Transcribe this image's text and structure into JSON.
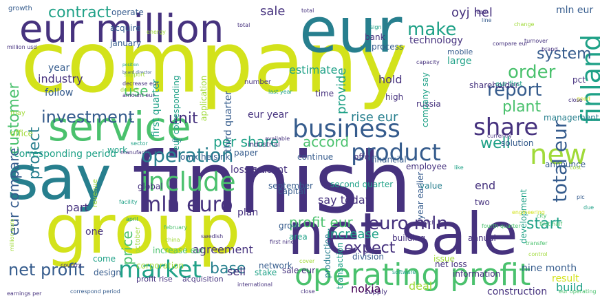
{
  "palette": {
    "yellow": "#d3e21b",
    "lime": "#a0da39",
    "green": "#4ac16d",
    "teal": "#1fa187",
    "cyan": "#277f8e",
    "blue": "#365c8d",
    "indigo": "#46327e",
    "purple": "#440154"
  },
  "words": [
    {
      "text": "company"
    },
    {
      "text": "finnish"
    },
    {
      "text": "eur"
    },
    {
      "text": "net sale"
    },
    {
      "text": "group"
    },
    {
      "text": "say"
    },
    {
      "text": "eur million"
    },
    {
      "text": "service"
    },
    {
      "text": "operating profit"
    },
    {
      "text": "business"
    },
    {
      "text": "include"
    },
    {
      "text": "finland"
    },
    {
      "text": "market"
    },
    {
      "text": "product"
    },
    {
      "text": "share"
    },
    {
      "text": "new"
    },
    {
      "text": "mln euro"
    },
    {
      "text": "total eur"
    },
    {
      "text": "operation"
    },
    {
      "text": "investment"
    },
    {
      "text": "net profit"
    },
    {
      "text": "euro mln"
    },
    {
      "text": "make"
    },
    {
      "text": "report"
    },
    {
      "text": "order"
    },
    {
      "text": "system"
    },
    {
      "text": "plant"
    },
    {
      "text": "well"
    },
    {
      "text": "customer"
    },
    {
      "text": "project"
    },
    {
      "text": "eur compare"
    },
    {
      "text": "contract"
    },
    {
      "text": "per share"
    },
    {
      "text": "accord"
    },
    {
      "text": "unit"
    },
    {
      "text": "use"
    },
    {
      "text": "base"
    },
    {
      "text": "expect"
    },
    {
      "text": "profit eur"
    },
    {
      "text": "price"
    },
    {
      "text": "start"
    },
    {
      "text": "increase"
    },
    {
      "text": "corresponding period"
    },
    {
      "text": "sale"
    },
    {
      "text": "oyj hel"
    },
    {
      "text": "provide"
    },
    {
      "text": "estimate"
    },
    {
      "text": "technology"
    },
    {
      "text": "industry"
    },
    {
      "text": "part"
    },
    {
      "text": "build"
    },
    {
      "text": "agreement"
    },
    {
      "text": "nokia"
    },
    {
      "text": "sell"
    },
    {
      "text": "end"
    },
    {
      "text": "mln eur"
    },
    {
      "text": "rise eur"
    },
    {
      "text": "say today"
    },
    {
      "text": "hold"
    },
    {
      "text": "one"
    },
    {
      "text": "corporation"
    },
    {
      "text": "sale eur"
    },
    {
      "text": "deal"
    },
    {
      "text": "construction"
    },
    {
      "text": "result"
    },
    {
      "text": "nine month"
    },
    {
      "text": "net loss"
    },
    {
      "text": "information"
    },
    {
      "text": "division"
    },
    {
      "text": "transaction"
    },
    {
      "text": "production"
    },
    {
      "text": "year earlier"
    },
    {
      "text": "development"
    },
    {
      "text": "loss eur"
    },
    {
      "text": "plan"
    },
    {
      "text": "grow"
    },
    {
      "text": "third quarter"
    },
    {
      "text": "first quarter"
    },
    {
      "text": "year"
    },
    {
      "text": "follow"
    },
    {
      "text": "operate"
    },
    {
      "text": "acquire"
    },
    {
      "text": "january"
    },
    {
      "text": "growth"
    },
    {
      "text": "application"
    },
    {
      "text": "eur corresponding"
    },
    {
      "text": "number"
    },
    {
      "text": "time"
    },
    {
      "text": "high"
    },
    {
      "text": "russia"
    },
    {
      "text": "company say"
    },
    {
      "text": "shareholder"
    },
    {
      "text": "large"
    },
    {
      "text": "mobile"
    },
    {
      "text": "eur first"
    },
    {
      "text": "pct"
    },
    {
      "text": "management"
    },
    {
      "text": "process"
    },
    {
      "text": "continue"
    },
    {
      "text": "offer"
    },
    {
      "text": "financial"
    },
    {
      "text": "employee"
    },
    {
      "text": "solution"
    },
    {
      "text": "announce"
    },
    {
      "text": "value"
    },
    {
      "text": "two"
    },
    {
      "text": "percent"
    },
    {
      "text": "eur year"
    },
    {
      "text": "paper"
    },
    {
      "text": "omx helsinki"
    },
    {
      "text": "second quarter"
    },
    {
      "text": "september"
    },
    {
      "text": "capital"
    },
    {
      "text": "area"
    },
    {
      "text": "building"
    },
    {
      "text": "annual"
    },
    {
      "text": "issue"
    },
    {
      "text": "network"
    },
    {
      "text": "stake"
    },
    {
      "text": "supply"
    },
    {
      "text": "design"
    },
    {
      "text": "come"
    },
    {
      "text": "office"
    },
    {
      "text": "work"
    },
    {
      "text": "global"
    },
    {
      "text": "profit rise"
    },
    {
      "text": "acquisition"
    },
    {
      "text": "increase eur"
    },
    {
      "text": "october"
    },
    {
      "text": "may"
    },
    {
      "text": "board director"
    },
    {
      "text": "position"
    },
    {
      "text": "bank"
    },
    {
      "text": "revenue"
    },
    {
      "text": "industrial"
    },
    {
      "text": "march"
    },
    {
      "text": "first half"
    },
    {
      "text": "fourth quarter"
    },
    {
      "text": "engineering"
    },
    {
      "text": "manufacture"
    },
    {
      "text": "sector"
    },
    {
      "text": "day"
    },
    {
      "text": "china"
    },
    {
      "text": "february"
    },
    {
      "text": "april"
    },
    {
      "text": "facility"
    },
    {
      "text": "swedish"
    },
    {
      "text": "first nine"
    },
    {
      "text": "country"
    },
    {
      "text": "earnings per"
    },
    {
      "text": "correspond period"
    },
    {
      "text": "close"
    },
    {
      "text": "international"
    },
    {
      "text": "cover"
    },
    {
      "text": "software"
    },
    {
      "text": "transfer"
    },
    {
      "text": "control"
    },
    {
      "text": "city"
    },
    {
      "text": "eur operating"
    },
    {
      "text": "available"
    },
    {
      "text": "currently"
    },
    {
      "text": "capacity"
    },
    {
      "text": "last year"
    },
    {
      "text": "amount eur"
    },
    {
      "text": "deliver"
    },
    {
      "text": "support"
    },
    {
      "text": "decrease eur"
    },
    {
      "text": "million usd"
    },
    {
      "text": "energy"
    },
    {
      "text": "total"
    },
    {
      "text": "lead"
    },
    {
      "text": "line"
    },
    {
      "text": "change"
    },
    {
      "text": "turnover"
    },
    {
      "text": "brand"
    },
    {
      "text": "compare eur"
    },
    {
      "text": "million euro"
    },
    {
      "text": "due"
    },
    {
      "text": "plc"
    },
    {
      "text": "cost"
    },
    {
      "text": "sign"
    },
    {
      "text": "good"
    },
    {
      "text": "like"
    },
    {
      "text": "close"
    },
    {
      "text": "total"
    }
  ]
}
